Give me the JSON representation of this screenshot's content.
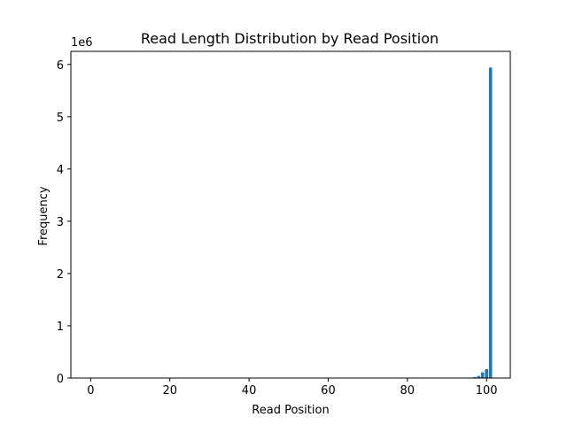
{
  "chart_data": {
    "type": "bar",
    "title": "Read Length Distribution by Read Position",
    "xlabel": "Read Position",
    "ylabel": "Frequency",
    "y_offset_label": "1e6",
    "xlim": [
      -5,
      106
    ],
    "ylim": [
      0,
      6.25
    ],
    "x_ticks": [
      0,
      20,
      40,
      60,
      80,
      100
    ],
    "x_tick_labels": [
      "0",
      "20",
      "40",
      "60",
      "80",
      "100"
    ],
    "y_ticks": [
      0,
      1,
      2,
      3,
      4,
      5,
      6
    ],
    "y_tick_labels": [
      "0",
      "1",
      "2",
      "3",
      "4",
      "5",
      "6"
    ],
    "bar_width": 0.8,
    "bar_color": "#1f77b4",
    "grid": false,
    "legend": "none",
    "x": [
      96,
      97,
      98,
      99,
      100,
      101
    ],
    "values": [
      0.01,
      0.02,
      0.04,
      0.11,
      0.17,
      5.94
    ]
  }
}
